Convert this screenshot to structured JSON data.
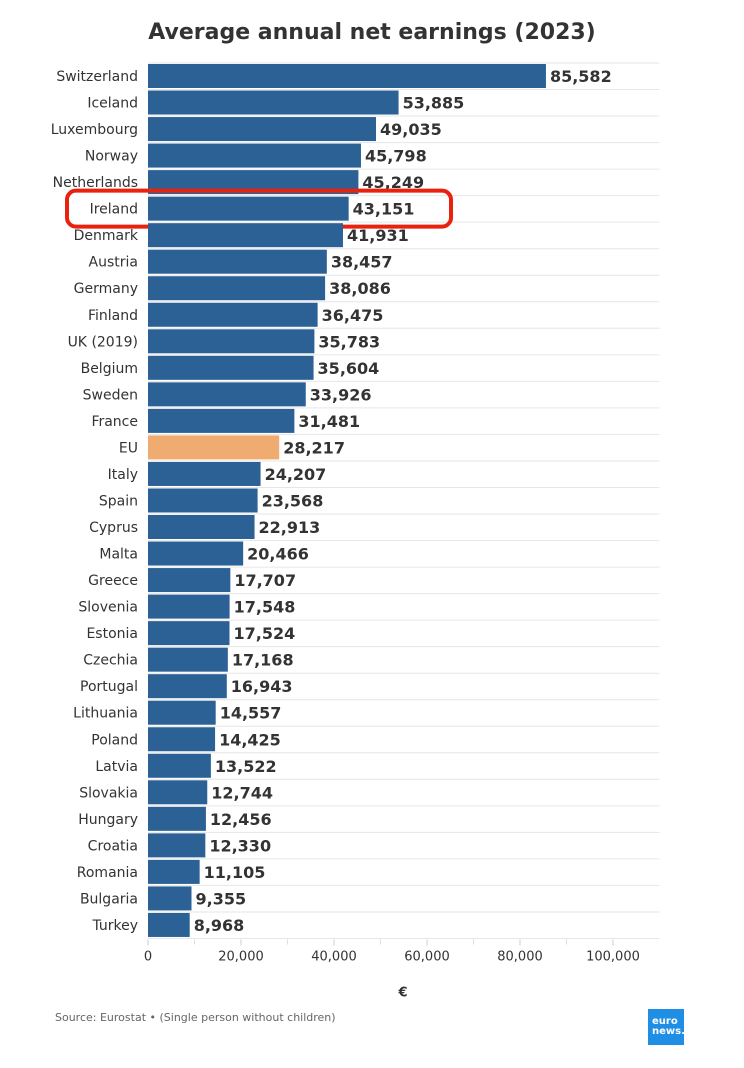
{
  "chart_data": {
    "type": "bar",
    "orientation": "horizontal",
    "title": "Average annual net earnings (2023)",
    "xlabel": "€",
    "ylabel": "",
    "xlim": [
      0,
      110000
    ],
    "xticks": [
      0,
      20000,
      40000,
      60000,
      80000,
      100000
    ],
    "xtick_labels": [
      "0",
      "20,000",
      "40,000",
      "60,000",
      "80,000",
      "100,000"
    ],
    "grid": true,
    "categories": [
      "Switzerland",
      "Iceland",
      "Luxembourg",
      "Norway",
      "Netherlands",
      "Ireland",
      "Denmark",
      "Austria",
      "Germany",
      "Finland",
      "UK (2019)",
      "Belgium",
      "Sweden",
      "France",
      "EU",
      "Italy",
      "Spain",
      "Cyprus",
      "Malta",
      "Greece",
      "Slovenia",
      "Estonia",
      "Czechia",
      "Portugal",
      "Lithuania",
      "Poland",
      "Latvia",
      "Slovakia",
      "Hungary",
      "Croatia",
      "Romania",
      "Bulgaria",
      "Turkey"
    ],
    "values": [
      85582,
      53885,
      49035,
      45798,
      45249,
      43151,
      41931,
      38457,
      38086,
      36475,
      35783,
      35604,
      33926,
      31481,
      28217,
      24207,
      23568,
      22913,
      20466,
      17707,
      17548,
      17524,
      17168,
      16943,
      14557,
      14425,
      13522,
      12744,
      12456,
      12330,
      11105,
      9355,
      8968
    ],
    "value_labels": [
      "85,582",
      "53,885",
      "49,035",
      "45,798",
      "45,249",
      "43,151",
      "41,931",
      "38,457",
      "38,086",
      "36,475",
      "35,783",
      "35,604",
      "33,926",
      "31,481",
      "28,217",
      "24,207",
      "23,568",
      "22,913",
      "20,466",
      "17,707",
      "17,548",
      "17,524",
      "17,168",
      "16,943",
      "14,557",
      "14,425",
      "13,522",
      "12,744",
      "12,456",
      "12,330",
      "11,105",
      "9,355",
      "8,968"
    ],
    "colors": {
      "default": "#2b6194",
      "highlight": "#f0ab70",
      "highlight_category": "EU",
      "annotation_outline": "#e8220e",
      "annotated_category": "Ireland"
    }
  },
  "source": "Source: Eurostat • (Single person without children)",
  "logo": {
    "line1": "euro",
    "line2": "news."
  }
}
